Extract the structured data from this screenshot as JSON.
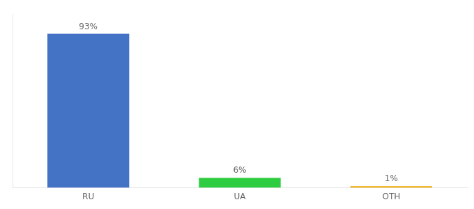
{
  "chart_data": {
    "type": "bar",
    "categories": [
      "RU",
      "UA",
      "OTH"
    ],
    "values": [
      93,
      6,
      1
    ],
    "value_labels": [
      "93%",
      "6%",
      "1%"
    ],
    "data_labels": true,
    "colors": [
      "#4472c4",
      "#2ecc40",
      "#f0a500"
    ],
    "ylim": [
      0,
      105
    ],
    "tick_labels": "x",
    "grid": false
  }
}
